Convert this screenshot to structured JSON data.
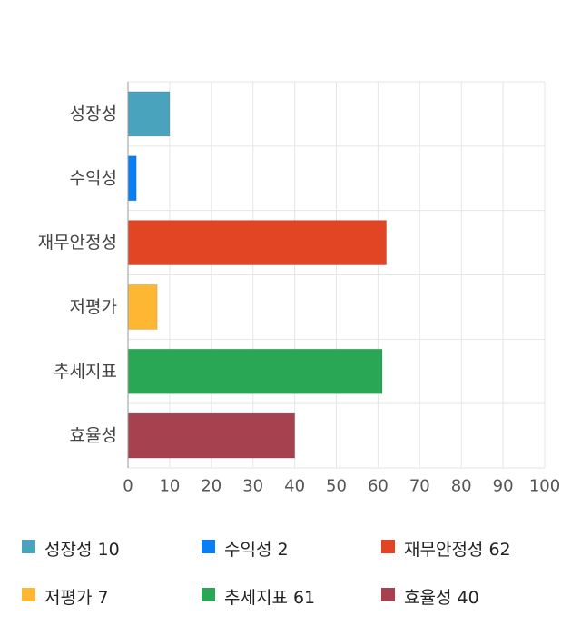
{
  "chart_data": {
    "type": "bar",
    "orientation": "horizontal",
    "categories": [
      "성장성",
      "수익성",
      "재무안정성",
      "저평가",
      "추세지표",
      "효율성"
    ],
    "values": [
      10,
      2,
      62,
      7,
      61,
      40
    ],
    "colors": [
      "#4aa3bc",
      "#0a7ef5",
      "#e24524",
      "#fdb733",
      "#2aa755",
      "#a6414f"
    ],
    "xlim": [
      0,
      100
    ],
    "xticks": [
      0,
      10,
      20,
      30,
      40,
      50,
      60,
      70,
      80,
      90,
      100
    ],
    "grid": true,
    "legend_position": "bottom",
    "legend": [
      {
        "label": "성장성 10",
        "color": "#4aa3bc"
      },
      {
        "label": "수익성 2",
        "color": "#0a7ef5"
      },
      {
        "label": "재무안정성 62",
        "color": "#e24524"
      },
      {
        "label": "저평가 7",
        "color": "#fdb733"
      },
      {
        "label": "추세지표 61",
        "color": "#2aa755"
      },
      {
        "label": "효율성 40",
        "color": "#a6414f"
      }
    ]
  }
}
